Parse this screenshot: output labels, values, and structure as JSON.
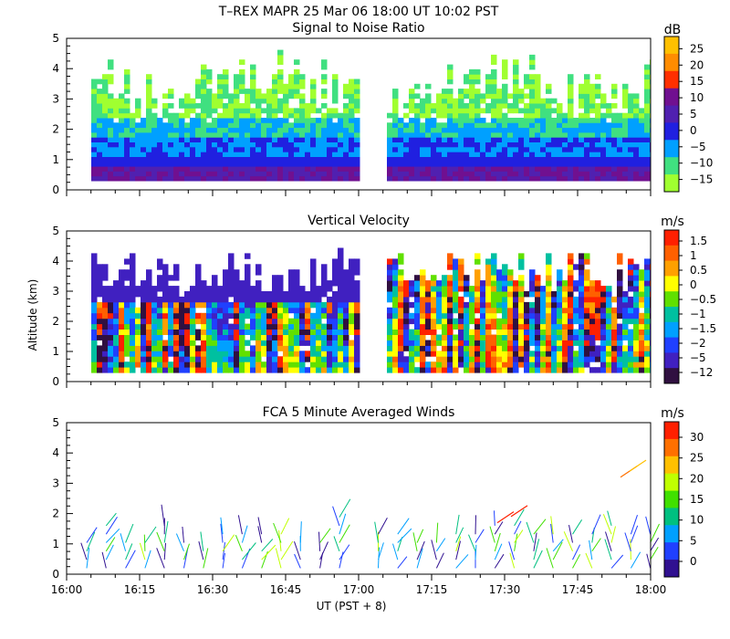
{
  "figure_title": "T–REX   MAPR 25 Mar 06   18:00 UT   10:02   PST",
  "ylabel": "Altitude (km)",
  "xlabel": "UT  (PST + 8)",
  "chart_data": [
    {
      "type": "heatmap",
      "title": "Signal to Noise Ratio",
      "colorbar_label": "dB",
      "colorbar_ticks": [
        "25",
        "20",
        "15",
        "10",
        "5",
        "0",
        "−5",
        "−10",
        "−15"
      ],
      "colorbar_colors": [
        "#ffc000",
        "#ff8c00",
        "#ff3000",
        "#701090",
        "#5020b0",
        "#2020e0",
        "#00a0ff",
        "#40e080",
        "#a0ff30"
      ],
      "x_range": [
        "16:00",
        "18:00"
      ],
      "ylim": [
        0,
        5
      ],
      "y_ticks": [
        "0",
        "1",
        "2",
        "3",
        "4",
        "5"
      ],
      "data_gap": [
        "17:00",
        "17:05"
      ]
    },
    {
      "type": "heatmap",
      "title": "Vertical Velocity",
      "colorbar_label": "m/s",
      "colorbar_ticks": [
        "1.5",
        "1",
        "0.5",
        "0",
        "−0.5",
        "−1",
        "−1.5",
        "−2",
        "−5",
        "−12"
      ],
      "colorbar_colors": [
        "#ff2000",
        "#ff6000",
        "#ffa000",
        "#ffff00",
        "#60e000",
        "#00c0a0",
        "#00a0ff",
        "#2040ff",
        "#4020c0",
        "#301040"
      ],
      "x_range": [
        "16:00",
        "18:00"
      ],
      "ylim": [
        0,
        5
      ],
      "y_ticks": [
        "0",
        "1",
        "2",
        "3",
        "4",
        "5"
      ],
      "data_gap": [
        "17:00",
        "17:05"
      ]
    },
    {
      "type": "scatter",
      "title": "FCA 5 Minute Averaged Winds",
      "colorbar_label": "m/s",
      "colorbar_ticks": [
        "30",
        "25",
        "20",
        "15",
        "10",
        "5",
        "0"
      ],
      "colorbar_colors": [
        "#ff2000",
        "#ff7000",
        "#ffc000",
        "#c0ff00",
        "#40e000",
        "#00c080",
        "#00a0ff",
        "#2040ff",
        "#301090"
      ],
      "x_ticks": [
        "16:00",
        "16:15",
        "16:30",
        "16:45",
        "17:00",
        "17:15",
        "17:30",
        "17:45",
        "18:00"
      ],
      "ylim": [
        0,
        5
      ],
      "y_ticks": [
        "0",
        "1",
        "2",
        "3",
        "4",
        "5"
      ]
    }
  ]
}
